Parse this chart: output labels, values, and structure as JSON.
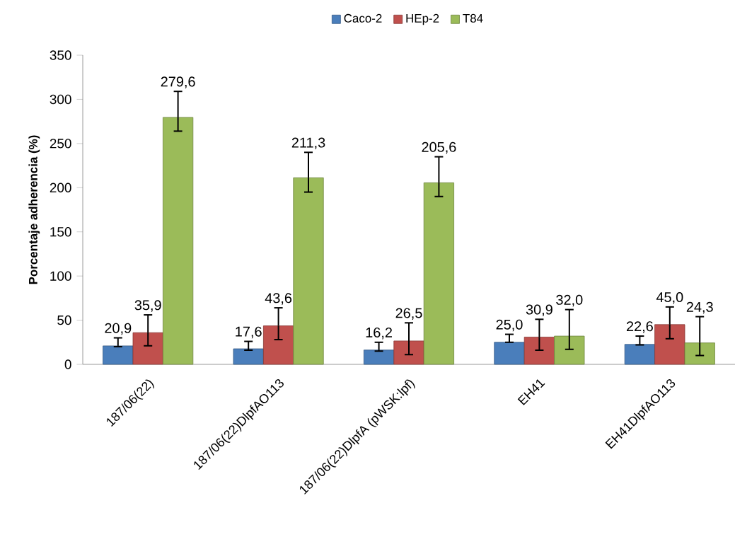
{
  "chart_data": {
    "type": "bar",
    "ylabel": "Porcentaje adherencia (%)",
    "categories": [
      "187/06(22)",
      "187/06(22)DlpfAO113",
      "187/06(22)DlpfA (pWSK:lpf)",
      "EH41",
      "EH41DlpfAO113"
    ],
    "series": [
      {
        "name": "Caco-2",
        "color": "#4a7ebb",
        "values": [
          20.9,
          17.6,
          16.2,
          25.0,
          22.6
        ],
        "errors": [
          [
            20,
            30
          ],
          [
            16,
            26
          ],
          [
            15,
            25
          ],
          [
            25,
            34
          ],
          [
            22,
            32
          ]
        ],
        "value_labels": [
          "20,9",
          "17,6",
          "16,2",
          "25,0",
          "22,6"
        ]
      },
      {
        "name": "HEp-2",
        "color": "#c0504d",
        "values": [
          35.9,
          43.6,
          26.5,
          30.9,
          45.0
        ],
        "errors": [
          [
            21,
            56
          ],
          [
            28,
            64
          ],
          [
            11,
            47
          ],
          [
            16,
            51
          ],
          [
            29,
            65
          ]
        ],
        "value_labels": [
          "35,9",
          "43,6",
          "26,5",
          "30,9",
          "45,0"
        ]
      },
      {
        "name": "T84",
        "color": "#9bbb59",
        "values": [
          279.6,
          211.3,
          205.6,
          32.0,
          24.3
        ],
        "errors": [
          [
            264,
            309
          ],
          [
            195,
            240
          ],
          [
            190,
            235
          ],
          [
            17,
            62
          ],
          [
            10,
            54
          ]
        ],
        "value_labels": [
          "279,6",
          "211,3",
          "205,6",
          "32,0",
          "24,3"
        ]
      }
    ],
    "ylim": [
      0,
      350
    ],
    "yticks": [
      0,
      50,
      100,
      150,
      200,
      250,
      300,
      350
    ],
    "legend": "top",
    "grid": false
  }
}
